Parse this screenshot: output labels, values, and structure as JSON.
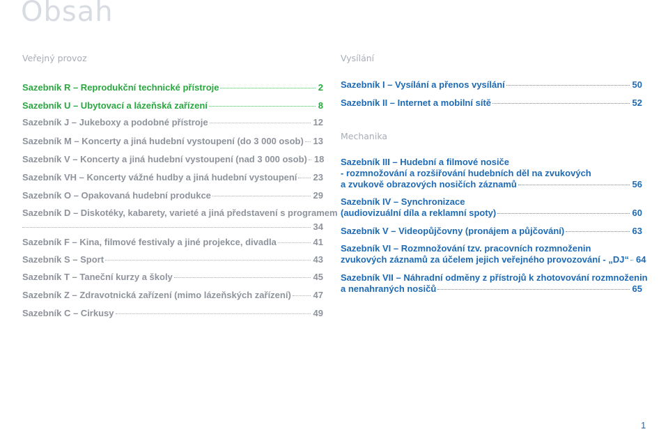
{
  "title": "Obsah",
  "left": {
    "section": "Veřejný provoz",
    "entries": [
      {
        "label": "Sazebník R – Reprodukční technické přístroje",
        "page": "2"
      },
      {
        "label": "Sazebník U – Ubytovací a lázeňská zařízení",
        "page": "8"
      },
      {
        "label": "Sazebník J – Jukeboxy a podobné přístroje",
        "page": "12"
      },
      {
        "label": "Sazebník M – Koncerty a jiná hudební vystoupení (do 3 000 osob)",
        "page": "13"
      },
      {
        "label": "Sazebník V – Koncerty a jiná hudební vystoupení (nad 3 000 osob)",
        "page": "18"
      },
      {
        "label": "Sazebník VH – Koncerty vážné hudby a jiná hudební vystoupení",
        "page": "23"
      },
      {
        "label": "Sazebník O – Opakovaná hudební produkce",
        "page": "29"
      },
      {
        "label": "Sazebník D – Diskotéky, kabarety, varieté a jiná představení s programem",
        "page": "34"
      },
      {
        "label": "Sazebník F – Kina, filmové festivaly a jiné projekce, divadla",
        "page": "41"
      },
      {
        "label": "Sazebník S – Sport",
        "page": "43"
      },
      {
        "label": "Sazebník T – Taneční kurzy a školy",
        "page": "45"
      },
      {
        "label": "Sazebník Z – Zdravotnická zařízení (mimo lázeňských zařízení)",
        "page": "47"
      },
      {
        "label": "Sazebník C – Cirkusy",
        "page": "49"
      }
    ]
  },
  "right": {
    "section1": "Vysílání",
    "section2": "Mechanika",
    "entries": [
      {
        "label": "Sazebník I – Vysílání a přenos vysílání",
        "page": "50"
      },
      {
        "label": "Sazebník II – Internet a mobilní sítě",
        "page": "52"
      },
      {
        "line1": "Sazebník III – Hudební a filmové nosiče",
        "line2": "- rozmnožování a rozšiřování hudebních děl na zvukových",
        "label": "a zvukově obrazových nosičích záznamů",
        "page": "56"
      },
      {
        "line1": "Sazebník IV – Synchronizace",
        "label": "(audiovizuální díla a reklamní spoty)",
        "page": "60"
      },
      {
        "label": "Sazebník V – Videopůjčovny (pronájem a půjčování)",
        "page": "63"
      },
      {
        "line1": "Sazebník VI – Rozmnožování tzv. pracovních rozmnoženin",
        "label": "zvukových záznamů za účelem jejich veřejného provozování - „DJ“",
        "page": "64"
      },
      {
        "line1": "Sazebník VII – Náhradní odměny z přístrojů k zhotovování rozmnoženin",
        "label": "a nenahraných nosičů",
        "page": "65"
      }
    ]
  },
  "page_number": "1",
  "colors": {
    "green": "#2aa840",
    "grey": "#8e939c",
    "blue": "#1e6ab3",
    "title": "#d8dbe2"
  }
}
